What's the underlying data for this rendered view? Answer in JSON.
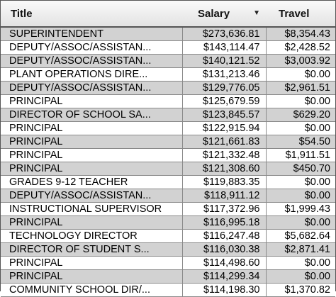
{
  "table": {
    "headers": {
      "title": "Title",
      "salary": "Salary",
      "travel": "Travel"
    },
    "sort_indicator": "▼",
    "rows": [
      {
        "title": "SUPERINTENDENT",
        "salary": "$273,636.81",
        "travel": "$8,354.43"
      },
      {
        "title": "DEPUTY/ASSOC/ASSISTAN...",
        "salary": "$143,114.47",
        "travel": "$2,428.52"
      },
      {
        "title": "DEPUTY/ASSOC/ASSISTAN...",
        "salary": "$140,121.52",
        "travel": "$3,003.92"
      },
      {
        "title": "PLANT OPERATIONS DIRE...",
        "salary": "$131,213.46",
        "travel": "$0.00"
      },
      {
        "title": "DEPUTY/ASSOC/ASSISTAN...",
        "salary": "$129,776.05",
        "travel": "$2,961.51"
      },
      {
        "title": "PRINCIPAL",
        "salary": "$125,679.59",
        "travel": "$0.00"
      },
      {
        "title": "DIRECTOR OF SCHOOL SA...",
        "salary": "$123,845.57",
        "travel": "$629.20"
      },
      {
        "title": "PRINCIPAL",
        "salary": "$122,915.94",
        "travel": "$0.00"
      },
      {
        "title": "PRINCIPAL",
        "salary": "$121,661.83",
        "travel": "$54.50"
      },
      {
        "title": "PRINCIPAL",
        "salary": "$121,332.48",
        "travel": "$1,911.51"
      },
      {
        "title": "PRINCIPAL",
        "salary": "$121,308.60",
        "travel": "$450.70"
      },
      {
        "title": "GRADES 9-12 TEACHER",
        "salary": "$119,883.35",
        "travel": "$0.00"
      },
      {
        "title": "DEPUTY/ASSOC/ASSISTAN...",
        "salary": "$118,911.12",
        "travel": "$0.00"
      },
      {
        "title": "INSTRUCTIONAL SUPERVISOR",
        "salary": "$117,372.96",
        "travel": "$1,999.43"
      },
      {
        "title": "PRINCIPAL",
        "salary": "$116,995.18",
        "travel": "$0.00"
      },
      {
        "title": "TECHNOLOGY DIRECTOR",
        "salary": "$116,247.48",
        "travel": "$5,682.64"
      },
      {
        "title": "DIRECTOR OF STUDENT S...",
        "salary": "$116,030.38",
        "travel": "$2,871.41"
      },
      {
        "title": "PRINCIPAL",
        "salary": "$114,498.60",
        "travel": "$0.00"
      },
      {
        "title": "PRINCIPAL",
        "salary": "$114,299.34",
        "travel": "$0.00"
      },
      {
        "title": "COMMUNITY SCHOOL DIR/...",
        "salary": "$114,198.30",
        "travel": "$1,370.82"
      }
    ]
  }
}
